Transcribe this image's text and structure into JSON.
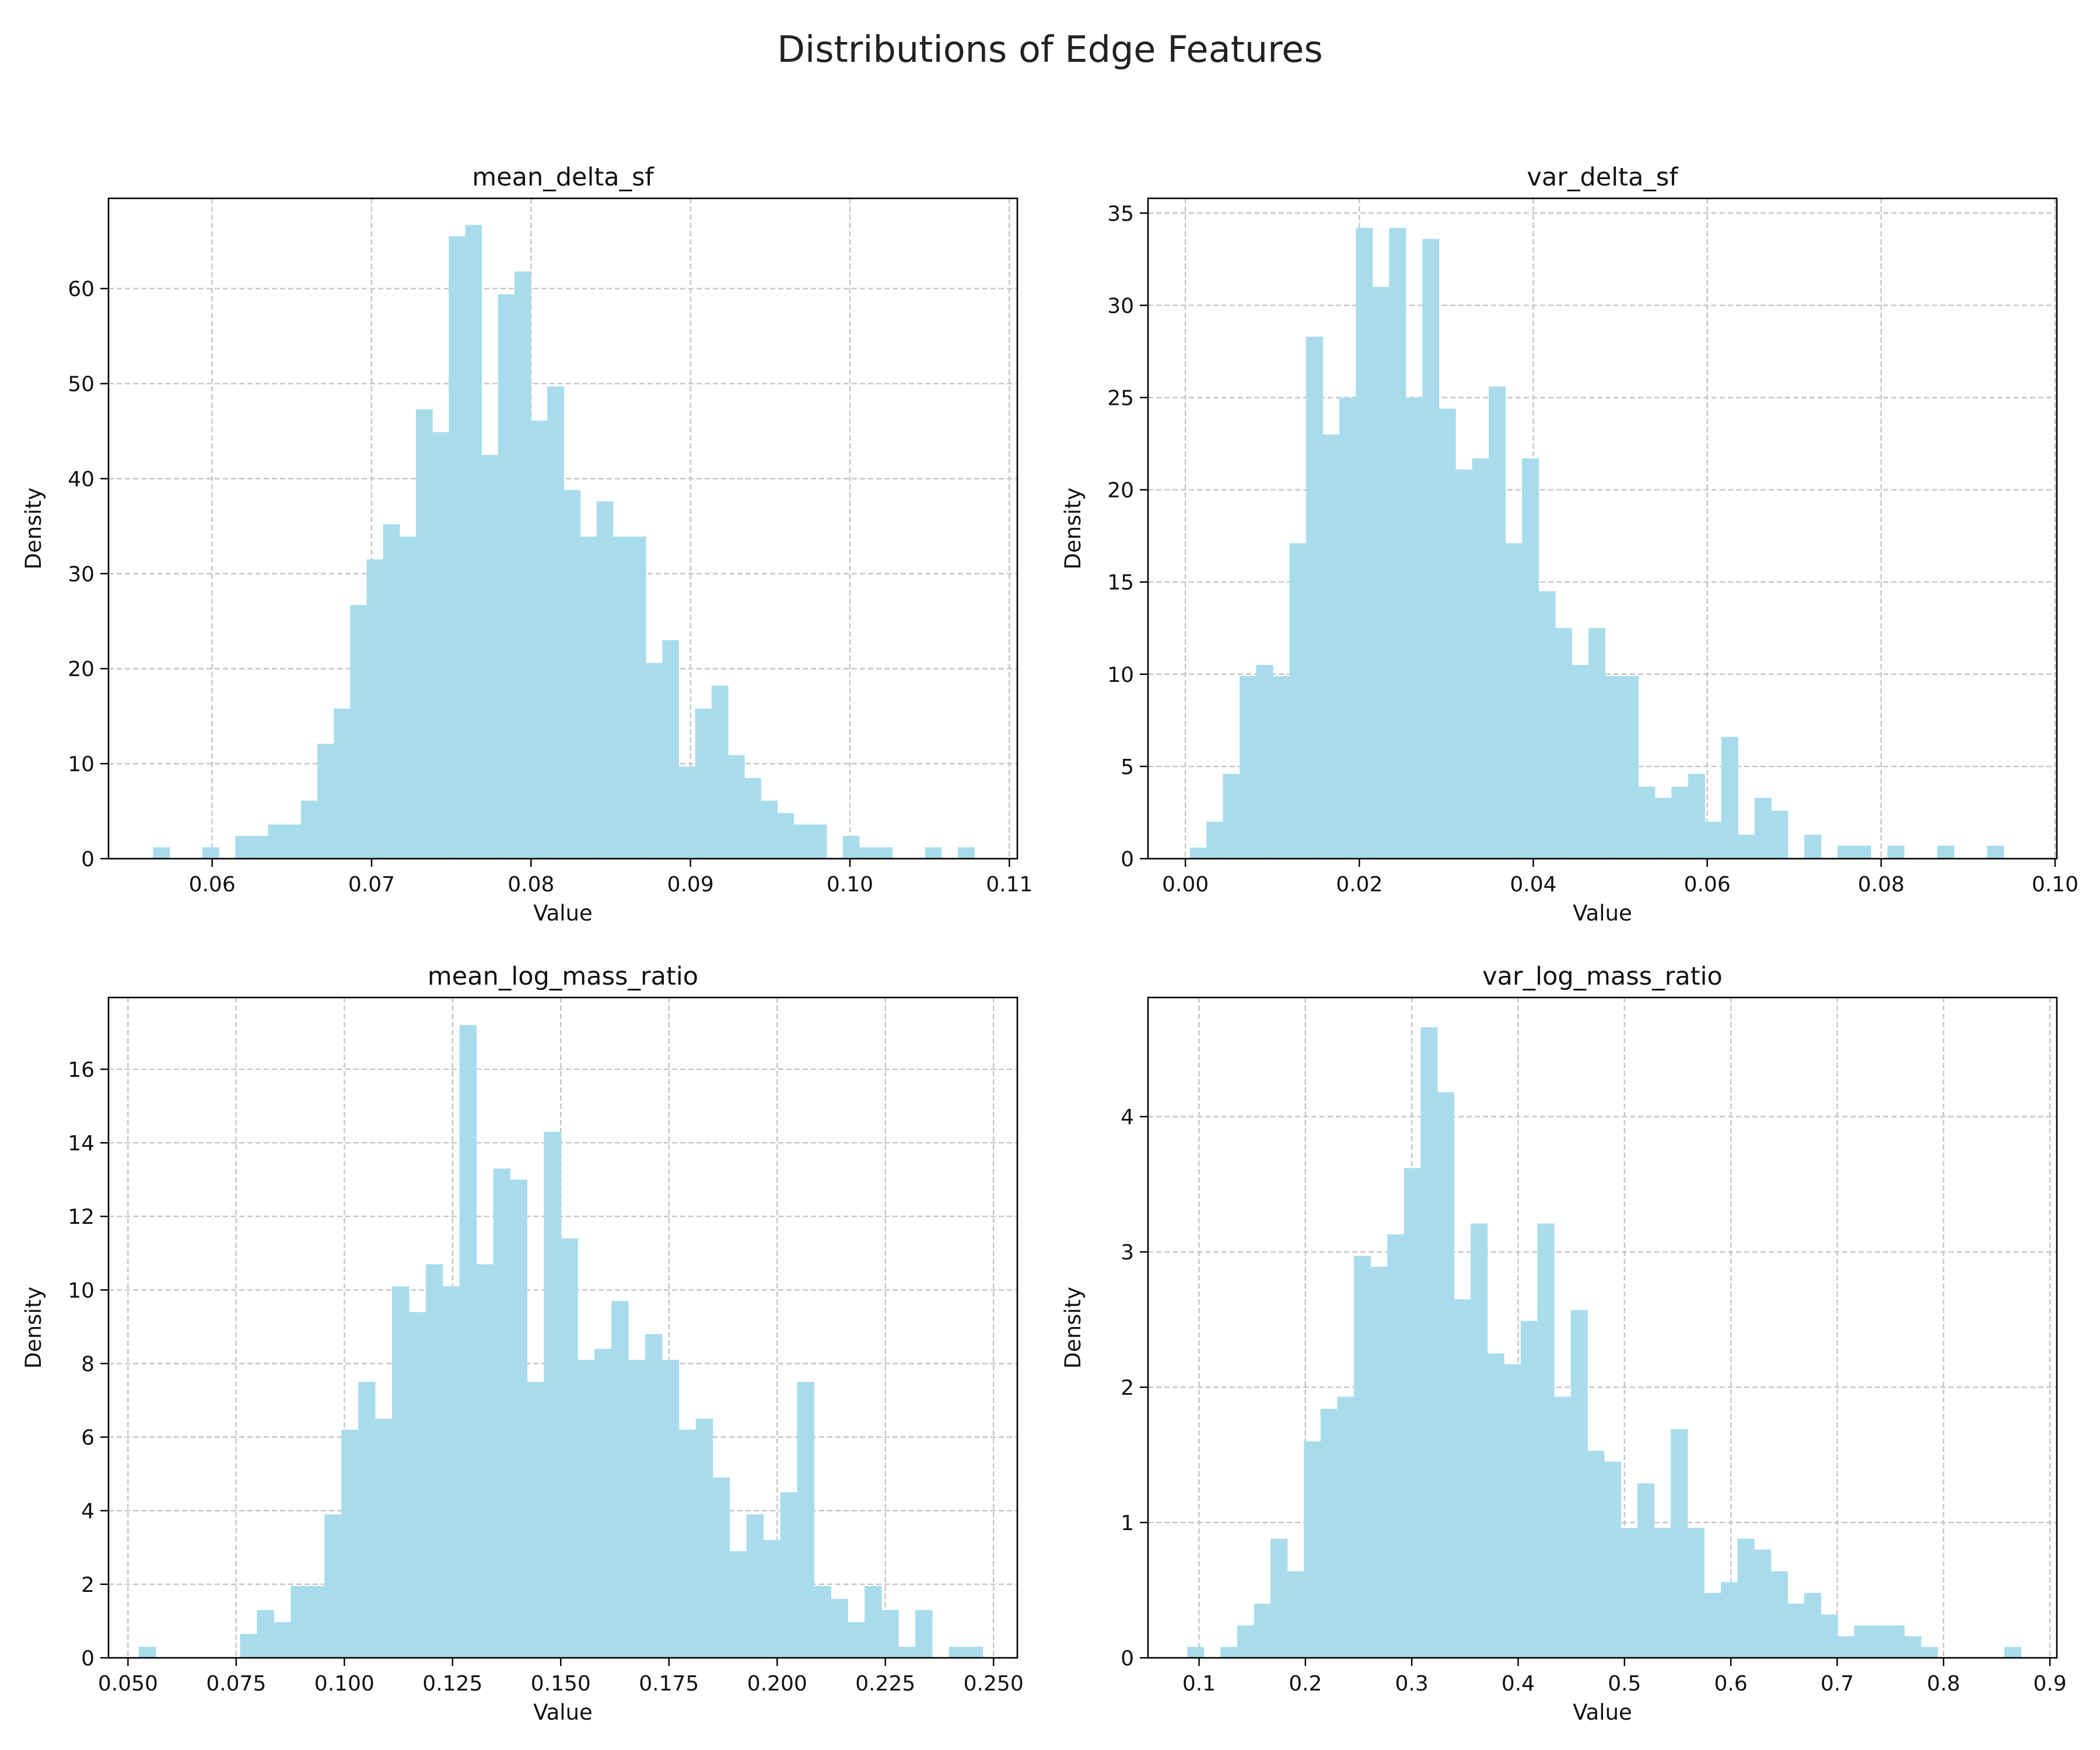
{
  "figure": {
    "title": "Distributions of Edge Features"
  },
  "chart_data": [
    {
      "type": "bar",
      "title": "mean_delta_sf",
      "xlabel": "Value",
      "ylabel": "Density",
      "bar_color": "#a8dcec",
      "grid": true,
      "xlim": [
        0.0535,
        0.1105
      ],
      "ylim": [
        0,
        69.5
      ],
      "xticks": [
        0.06,
        0.07,
        0.08,
        0.09,
        0.1,
        0.11
      ],
      "xtick_labels": [
        "0.06",
        "0.07",
        "0.08",
        "0.09",
        "0.10",
        "0.11"
      ],
      "yticks": [
        0,
        10,
        20,
        30,
        40,
        50,
        60
      ],
      "ytick_labels": [
        "0",
        "10",
        "20",
        "30",
        "40",
        "50",
        "60"
      ],
      "bin_start": 0.0563,
      "bin_width": 0.00103,
      "values": [
        1.2,
        0,
        0,
        1.2,
        0,
        2.4,
        2.4,
        3.6,
        3.6,
        6.1,
        12.1,
        15.8,
        26.7,
        31.5,
        35.2,
        33.9,
        47.3,
        44.9,
        65.5,
        66.7,
        42.5,
        59.4,
        61.8,
        46.1,
        49.7,
        38.8,
        33.9,
        37.6,
        33.9,
        33.9,
        20.6,
        23.0,
        9.7,
        15.8,
        18.2,
        10.9,
        8.5,
        6.1,
        4.8,
        3.6,
        3.6,
        0,
        2.4,
        1.2,
        1.2,
        0,
        0,
        1.2,
        0,
        1.2
      ]
    },
    {
      "type": "bar",
      "title": "var_delta_sf",
      "xlabel": "Value",
      "ylabel": "Density",
      "bar_color": "#a8dcec",
      "grid": true,
      "xlim": [
        -0.0043,
        0.1002
      ],
      "ylim": [
        0,
        35.8
      ],
      "xticks": [
        0.0,
        0.02,
        0.04,
        0.06,
        0.08,
        0.1
      ],
      "xtick_labels": [
        "0.00",
        "0.02",
        "0.04",
        "0.06",
        "0.08",
        "0.10"
      ],
      "yticks": [
        0,
        5,
        10,
        15,
        20,
        25,
        30,
        35
      ],
      "ytick_labels": [
        "0",
        "5",
        "10",
        "15",
        "20",
        "25",
        "30",
        "35"
      ],
      "bin_start": 0.0005,
      "bin_width": 0.00191,
      "values": [
        0.6,
        2.0,
        4.6,
        9.9,
        10.5,
        9.9,
        17.1,
        28.3,
        23.0,
        25.0,
        34.2,
        31.0,
        34.2,
        25.0,
        33.6,
        24.4,
        21.1,
        21.7,
        25.6,
        17.1,
        21.7,
        14.5,
        12.5,
        10.5,
        12.5,
        9.9,
        9.9,
        3.9,
        3.3,
        3.9,
        4.6,
        2.0,
        6.6,
        1.3,
        3.3,
        2.6,
        0,
        1.3,
        0,
        0.7,
        0.7,
        0,
        0.7,
        0,
        0,
        0.7,
        0,
        0,
        0.7,
        0
      ]
    },
    {
      "type": "bar",
      "title": "mean_log_mass_ratio",
      "xlabel": "Value",
      "ylabel": "Density",
      "bar_color": "#a8dcec",
      "grid": true,
      "xlim": [
        0.0455,
        0.2555
      ],
      "ylim": [
        0,
        17.95
      ],
      "xticks": [
        0.05,
        0.075,
        0.1,
        0.125,
        0.15,
        0.175,
        0.2,
        0.225,
        0.25
      ],
      "xtick_labels": [
        "0.050",
        "0.075",
        "0.100",
        "0.125",
        "0.150",
        "0.175",
        "0.200",
        "0.225",
        "0.250"
      ],
      "yticks": [
        0,
        2,
        4,
        6,
        8,
        10,
        12,
        14,
        16
      ],
      "ytick_labels": [
        "0",
        "2",
        "4",
        "6",
        "8",
        "10",
        "12",
        "14",
        "16"
      ],
      "bin_start": 0.0525,
      "bin_width": 0.0039,
      "values": [
        0.3,
        0,
        0,
        0,
        0,
        0,
        0.65,
        1.3,
        0.97,
        1.95,
        1.95,
        3.9,
        6.2,
        7.5,
        6.5,
        10.1,
        9.4,
        10.7,
        10.1,
        17.2,
        10.7,
        13.3,
        13.0,
        7.5,
        14.3,
        11.4,
        8.1,
        8.4,
        9.7,
        8.1,
        8.8,
        8.1,
        6.2,
        6.5,
        4.9,
        2.9,
        3.9,
        3.2,
        4.5,
        7.5,
        1.95,
        1.6,
        0.97,
        1.95,
        1.3,
        0.3,
        1.3,
        0,
        0.3,
        0.3
      ]
    },
    {
      "type": "bar",
      "title": "var_log_mass_ratio",
      "xlabel": "Value",
      "ylabel": "Density",
      "bar_color": "#a8dcec",
      "grid": true,
      "xlim": [
        0.052,
        0.9065
      ],
      "ylim": [
        0,
        4.88
      ],
      "xticks": [
        0.1,
        0.2,
        0.3,
        0.4,
        0.5,
        0.6,
        0.7,
        0.8,
        0.9
      ],
      "xtick_labels": [
        "0.1",
        "0.2",
        "0.3",
        "0.4",
        "0.5",
        "0.6",
        "0.7",
        "0.8",
        "0.9"
      ],
      "yticks": [
        0,
        1,
        2,
        3,
        4
      ],
      "ytick_labels": [
        "0",
        "1",
        "2",
        "3",
        "4"
      ],
      "bin_start": 0.0888,
      "bin_width": 0.01568,
      "values": [
        0.08,
        0,
        0.08,
        0.24,
        0.4,
        0.88,
        0.64,
        1.6,
        1.84,
        1.93,
        2.97,
        2.89,
        3.13,
        3.62,
        4.66,
        4.18,
        2.65,
        3.21,
        2.25,
        2.17,
        2.49,
        3.21,
        1.93,
        2.57,
        1.53,
        1.45,
        0.96,
        1.29,
        0.96,
        1.69,
        0.96,
        0.48,
        0.56,
        0.88,
        0.8,
        0.64,
        0.4,
        0.48,
        0.32,
        0.16,
        0.24,
        0.24,
        0.24,
        0.16,
        0.08,
        0,
        0,
        0,
        0,
        0.08
      ]
    }
  ]
}
